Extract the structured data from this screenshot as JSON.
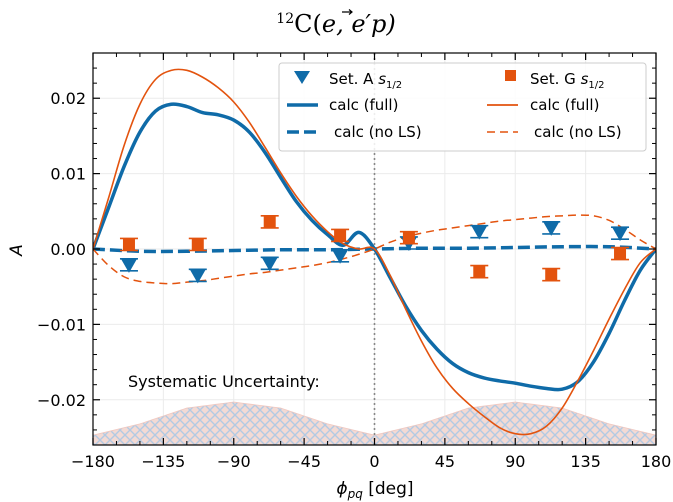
{
  "chart_data": {
    "type": "scatter",
    "title_mass_number": "12",
    "title_main": "C(",
    "title_vec_e": "e",
    "title_tail": ", e′p)",
    "xlabel_symbol": "ϕ",
    "xlabel_sub": "pq",
    "xlabel_unit": " [deg]",
    "ylabel": "A",
    "xlim": [
      -180,
      180
    ],
    "ylim": [
      -0.026,
      0.026
    ],
    "x_ticks": [
      -180,
      -135,
      -90,
      -45,
      0,
      45,
      90,
      135,
      180
    ],
    "x_tick_labels": [
      "−180",
      "−135",
      "−90",
      "−45",
      "0",
      "45",
      "90",
      "135",
      "180"
    ],
    "y_ticks": [
      -0.02,
      -0.01,
      0.0,
      0.01,
      0.02
    ],
    "y_tick_labels": [
      "−0.02",
      "−0.01",
      "0.00",
      "0.01",
      "0.02"
    ],
    "grid": true,
    "legend_position": "top-right",
    "annotation": "Systematic Uncertainty:",
    "colors": {
      "setA": "#0f6ba8",
      "setG": "#e3530e",
      "zero_line": "#888888",
      "band_fill": "#f2d6cf",
      "band_hatch": "#aac4e0"
    },
    "series": [
      {
        "name": "Set. A",
        "name_sub_label": "s",
        "name_sub": "1/2",
        "kind": "points",
        "marker": "triangle-down",
        "color": "#0f6ba8",
        "x": [
          -157,
          -113,
          -67,
          -22,
          22,
          67,
          113,
          157
        ],
        "y": [
          -0.0021,
          -0.0035,
          -0.0019,
          -0.0009,
          0.0008,
          0.0023,
          0.0028,
          0.0021
        ],
        "err": [
          0.0008,
          0.0008,
          0.0008,
          0.0008,
          0.0008,
          0.0008,
          0.0008,
          0.0008
        ]
      },
      {
        "name": "Set. G",
        "name_sub_label": "s",
        "name_sub": "1/2",
        "kind": "points",
        "marker": "square",
        "color": "#e3530e",
        "x": [
          -157,
          -113,
          -67,
          -22,
          22,
          67,
          113,
          157
        ],
        "y": [
          0.0006,
          0.0006,
          0.0036,
          0.0018,
          0.0015,
          -0.003,
          -0.0034,
          -0.0006
        ],
        "err": [
          0.0008,
          0.0008,
          0.0008,
          0.0008,
          0.0008,
          0.0008,
          0.0008,
          0.0008
        ]
      },
      {
        "name": "calc (full)",
        "kind": "line",
        "style": "solid-thick",
        "color": "#0f6ba8",
        "x": [
          -180,
          -170,
          -160,
          -150,
          -140,
          -130,
          -120,
          -110,
          -100,
          -90,
          -80,
          -70,
          -60,
          -50,
          -40,
          -30,
          -20,
          -10,
          0,
          10,
          20,
          30,
          40,
          50,
          60,
          70,
          80,
          90,
          100,
          110,
          120,
          130,
          140,
          150,
          160,
          170,
          180
        ],
        "y": [
          0.0,
          0.0055,
          0.011,
          0.0155,
          0.0183,
          0.0192,
          0.0189,
          0.0181,
          0.0178,
          0.0171,
          0.0155,
          0.0128,
          0.0095,
          0.0063,
          0.0038,
          0.0019,
          0.0005,
          0.0022,
          0.0,
          -0.0038,
          -0.0076,
          -0.0108,
          -0.0133,
          -0.0152,
          -0.0164,
          -0.0171,
          -0.0175,
          -0.0178,
          -0.0182,
          -0.0185,
          -0.0186,
          -0.0176,
          -0.015,
          -0.0112,
          -0.0068,
          -0.0028,
          0.0
        ]
      },
      {
        "name": "calc (no LS)",
        "kind": "line",
        "style": "dashed-thick",
        "color": "#0f6ba8",
        "x": [
          -180,
          -150,
          -120,
          -90,
          -60,
          -30,
          0,
          30,
          60,
          90,
          120,
          150,
          180
        ],
        "y": [
          0.0,
          -0.0003,
          -0.0003,
          -0.0002,
          -0.0001,
          -0.0001,
          0.0,
          0.0001,
          0.0001,
          0.0002,
          0.0003,
          0.0003,
          0.0
        ]
      },
      {
        "name": "calc (full)",
        "kind": "line",
        "style": "solid-thin",
        "color": "#e3530e",
        "x": [
          -180,
          -170,
          -160,
          -150,
          -140,
          -130,
          -120,
          -110,
          -100,
          -90,
          -80,
          -70,
          -60,
          -50,
          -40,
          -30,
          -20,
          -10,
          0,
          10,
          20,
          30,
          40,
          50,
          60,
          70,
          80,
          90,
          100,
          110,
          120,
          130,
          140,
          150,
          160,
          170,
          180
        ],
        "y": [
          0.0,
          0.0068,
          0.0138,
          0.0192,
          0.0225,
          0.0237,
          0.0237,
          0.0228,
          0.0214,
          0.0195,
          0.0168,
          0.0135,
          0.0101,
          0.007,
          0.0044,
          0.0023,
          0.0007,
          0.0,
          0.0,
          -0.0035,
          -0.008,
          -0.0122,
          -0.0158,
          -0.0185,
          -0.0205,
          -0.0222,
          -0.0237,
          -0.0245,
          -0.0245,
          -0.0235,
          -0.0211,
          -0.0175,
          -0.0135,
          -0.0093,
          -0.0053,
          -0.0018,
          0.0
        ]
      },
      {
        "name": "calc (no LS)",
        "kind": "line",
        "style": "dashed-thin",
        "color": "#e3530e",
        "x": [
          -180,
          -170,
          -160,
          -150,
          -140,
          -130,
          -120,
          -110,
          -100,
          -90,
          -80,
          -70,
          -60,
          -50,
          -40,
          -30,
          -20,
          -10,
          0,
          10,
          20,
          30,
          40,
          50,
          60,
          70,
          80,
          90,
          100,
          110,
          120,
          130,
          140,
          150,
          160,
          170,
          180
        ],
        "y": [
          0.0,
          -0.0022,
          -0.0037,
          -0.0043,
          -0.0045,
          -0.0046,
          -0.0044,
          -0.0042,
          -0.0039,
          -0.0036,
          -0.0033,
          -0.0031,
          -0.0028,
          -0.0025,
          -0.0022,
          -0.0018,
          -0.0013,
          -0.0007,
          0.0,
          0.0009,
          0.0016,
          0.0021,
          0.0025,
          0.0028,
          0.0031,
          0.0034,
          0.0037,
          0.0039,
          0.0041,
          0.0043,
          0.0044,
          0.0045,
          0.0044,
          0.0038,
          0.0026,
          0.0012,
          0.0
        ]
      }
    ],
    "systematic_band": {
      "x": [
        -180,
        -150,
        -120,
        -90,
        -60,
        -30,
        0,
        30,
        60,
        90,
        120,
        150,
        180
      ],
      "y_top": [
        -0.0247,
        -0.0232,
        -0.0211,
        -0.0203,
        -0.0211,
        -0.0232,
        -0.0247,
        -0.0232,
        -0.0211,
        -0.0203,
        -0.0211,
        -0.0232,
        -0.0247
      ]
    }
  }
}
